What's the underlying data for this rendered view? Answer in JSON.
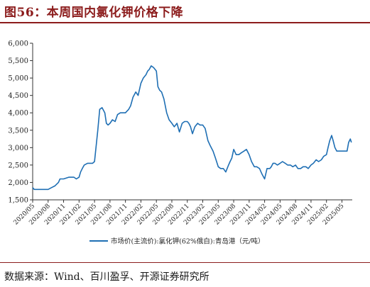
{
  "header": {
    "title": "图56：本周国内氯化钾价格下降"
  },
  "footer": {
    "source": "数据来源：Wind、百川盈孚、开源证券研究所"
  },
  "colors": {
    "title": "#8c1c1c",
    "series": "#1f6fb4",
    "axis": "#333333"
  },
  "chart_data": {
    "type": "line",
    "title": "",
    "xlabel": "",
    "ylabel": "",
    "ylim": [
      1500,
      6000
    ],
    "yticks": [
      1500,
      2000,
      2500,
      3000,
      3500,
      4000,
      4500,
      5000,
      5500,
      6000
    ],
    "ytick_labels": [
      "1,500",
      "2,000",
      "2,500",
      "3,000",
      "3,500",
      "4,000",
      "4,500",
      "5,000",
      "5,500",
      "6,000"
    ],
    "xlim": [
      "2020-05",
      "2025-07"
    ],
    "xtick_labels": [
      "2020/05",
      "2020/08",
      "2020/11",
      "2021/02",
      "2021/05",
      "2021/08",
      "2021/11",
      "2022/02",
      "2022/05",
      "2022/08",
      "2022/11",
      "2023/02",
      "2023/05",
      "2023/08",
      "2023/11",
      "2024/02",
      "2024/05",
      "2024/08",
      "2024/11",
      "2025/02",
      "2025/05"
    ],
    "grid": false,
    "legend": "bottom-center",
    "series": [
      {
        "name": "市场价(主流价):氯化钾(62%俄白):青岛港（元/吨）",
        "x": [
          "2020-05-01",
          "2020-05-10",
          "2020-06-01",
          "2020-07-01",
          "2020-08-01",
          "2020-08-20",
          "2020-09-10",
          "2020-10-01",
          "2020-10-10",
          "2020-11-01",
          "2020-12-01",
          "2021-01-01",
          "2021-01-15",
          "2021-02-01",
          "2021-02-10",
          "2021-02-20",
          "2021-03-01",
          "2021-03-20",
          "2021-04-01",
          "2021-04-20",
          "2021-05-01",
          "2021-05-20",
          "2021-06-01",
          "2021-06-15",
          "2021-07-01",
          "2021-07-10",
          "2021-07-20",
          "2021-08-01",
          "2021-08-15",
          "2021-09-01",
          "2021-09-15",
          "2021-10-01",
          "2021-10-15",
          "2021-11-01",
          "2021-11-20",
          "2021-12-01",
          "2021-12-15",
          "2022-01-01",
          "2022-01-15",
          "2022-02-01",
          "2022-02-15",
          "2022-03-01",
          "2022-03-10",
          "2022-03-20",
          "2022-04-01",
          "2022-04-15",
          "2022-05-01",
          "2022-05-10",
          "2022-05-20",
          "2022-06-01",
          "2022-06-15",
          "2022-07-01",
          "2022-07-15",
          "2022-08-01",
          "2022-08-15",
          "2022-09-01",
          "2022-09-15",
          "2022-10-01",
          "2022-10-15",
          "2022-11-01",
          "2022-11-10",
          "2022-11-20",
          "2022-12-01",
          "2022-12-15",
          "2023-01-01",
          "2023-01-15",
          "2023-02-01",
          "2023-02-15",
          "2023-03-01",
          "2023-03-15",
          "2023-04-01",
          "2023-04-15",
          "2023-05-01",
          "2023-05-15",
          "2023-06-01",
          "2023-06-15",
          "2023-07-01",
          "2023-07-10",
          "2023-07-20",
          "2023-08-01",
          "2023-08-15",
          "2023-09-01",
          "2023-09-15",
          "2023-10-01",
          "2023-10-15",
          "2023-11-01",
          "2023-11-15",
          "2023-12-01",
          "2023-12-15",
          "2024-01-01",
          "2024-01-15",
          "2024-02-01",
          "2024-02-15",
          "2024-03-01",
          "2024-03-10",
          "2024-03-20",
          "2024-04-01",
          "2024-04-15",
          "2024-05-01",
          "2024-05-15",
          "2024-06-01",
          "2024-06-15",
          "2024-07-01",
          "2024-07-15",
          "2024-08-01",
          "2024-08-15",
          "2024-09-01",
          "2024-09-15",
          "2024-10-01",
          "2024-10-15",
          "2024-11-01",
          "2024-11-15",
          "2024-12-01",
          "2024-12-15",
          "2025-01-01",
          "2025-01-15",
          "2025-02-01",
          "2025-02-10",
          "2025-02-20",
          "2025-03-01",
          "2025-03-10",
          "2025-03-20",
          "2025-04-01",
          "2025-04-15",
          "2025-05-01",
          "2025-05-15",
          "2025-06-01",
          "2025-06-10",
          "2025-06-20",
          "2025-06-26"
        ],
        "y": [
          1850,
          1800,
          1800,
          1800,
          1800,
          1850,
          1900,
          2000,
          2100,
          2100,
          2150,
          2150,
          2100,
          2150,
          2300,
          2400,
          2500,
          2550,
          2550,
          2550,
          2600,
          3500,
          4100,
          4150,
          4000,
          3700,
          3650,
          3700,
          3800,
          3750,
          3950,
          4000,
          4000,
          4000,
          4100,
          4200,
          4450,
          4600,
          4500,
          4850,
          5000,
          5100,
          5200,
          5250,
          5350,
          5300,
          5200,
          4750,
          4650,
          4600,
          4400,
          4000,
          3800,
          3700,
          3600,
          3700,
          3450,
          3700,
          3750,
          3750,
          3700,
          3600,
          3400,
          3600,
          3700,
          3650,
          3650,
          3550,
          3200,
          3050,
          2900,
          2700,
          2450,
          2400,
          2400,
          2300,
          2500,
          2600,
          2700,
          2950,
          2800,
          2800,
          2850,
          2900,
          2950,
          2800,
          2600,
          2450,
          2450,
          2400,
          2250,
          2100,
          2400,
          2400,
          2450,
          2550,
          2550,
          2500,
          2550,
          2600,
          2550,
          2500,
          2500,
          2450,
          2500,
          2400,
          2400,
          2450,
          2450,
          2400,
          2500,
          2550,
          2650,
          2600,
          2650,
          2750,
          2800,
          3000,
          3200,
          3350,
          3200,
          3000,
          2900,
          2900,
          2900,
          2900,
          2900,
          3150,
          3250,
          3150
        ]
      }
    ]
  }
}
